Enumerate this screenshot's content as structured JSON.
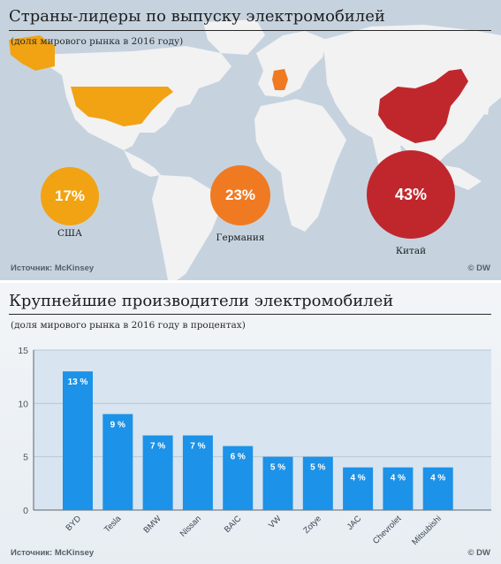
{
  "map_section": {
    "title": "Страны-лидеры по выпуску электромобилей",
    "subtitle": "(доля мирового рынка в 2016 году)",
    "source": "Источник: McKinsey",
    "credit": "© DW",
    "colors": {
      "usa": "#f1a313",
      "germany": "#f07a22",
      "china": "#c0272d",
      "land": "#f2f2f2",
      "sea": "#c6d3df"
    },
    "countries": [
      {
        "name": "США",
        "share": "17%"
      },
      {
        "name": "Германия",
        "share": "23%"
      },
      {
        "name": "Китай",
        "share": "43%"
      }
    ]
  },
  "bar_section": {
    "source": "Источник: McKinsey",
    "credit": "© DW"
  },
  "chart_data": {
    "type": "bar",
    "title": "Крупнейшие производители электромобилей",
    "subtitle": "(доля мирового рынка в 2016 году в процентах)",
    "categories": [
      "BYD",
      "Tesla",
      "BMW",
      "Nissan",
      "BAIC",
      "VW",
      "Zotye",
      "JAC",
      "Chevrolet",
      "Mitsubishi"
    ],
    "values": [
      13,
      9,
      7,
      7,
      6,
      5,
      5,
      4,
      4,
      4
    ],
    "data_labels": [
      "13 %",
      "9 %",
      "7 %",
      "7 %",
      "6 %",
      "5 %",
      "5 %",
      "4 %",
      "4 %",
      "4 %"
    ],
    "ylim": [
      0,
      15
    ],
    "yticks": [
      0,
      5,
      10,
      15
    ],
    "grid": true,
    "bar_color": "#1c92e8"
  }
}
